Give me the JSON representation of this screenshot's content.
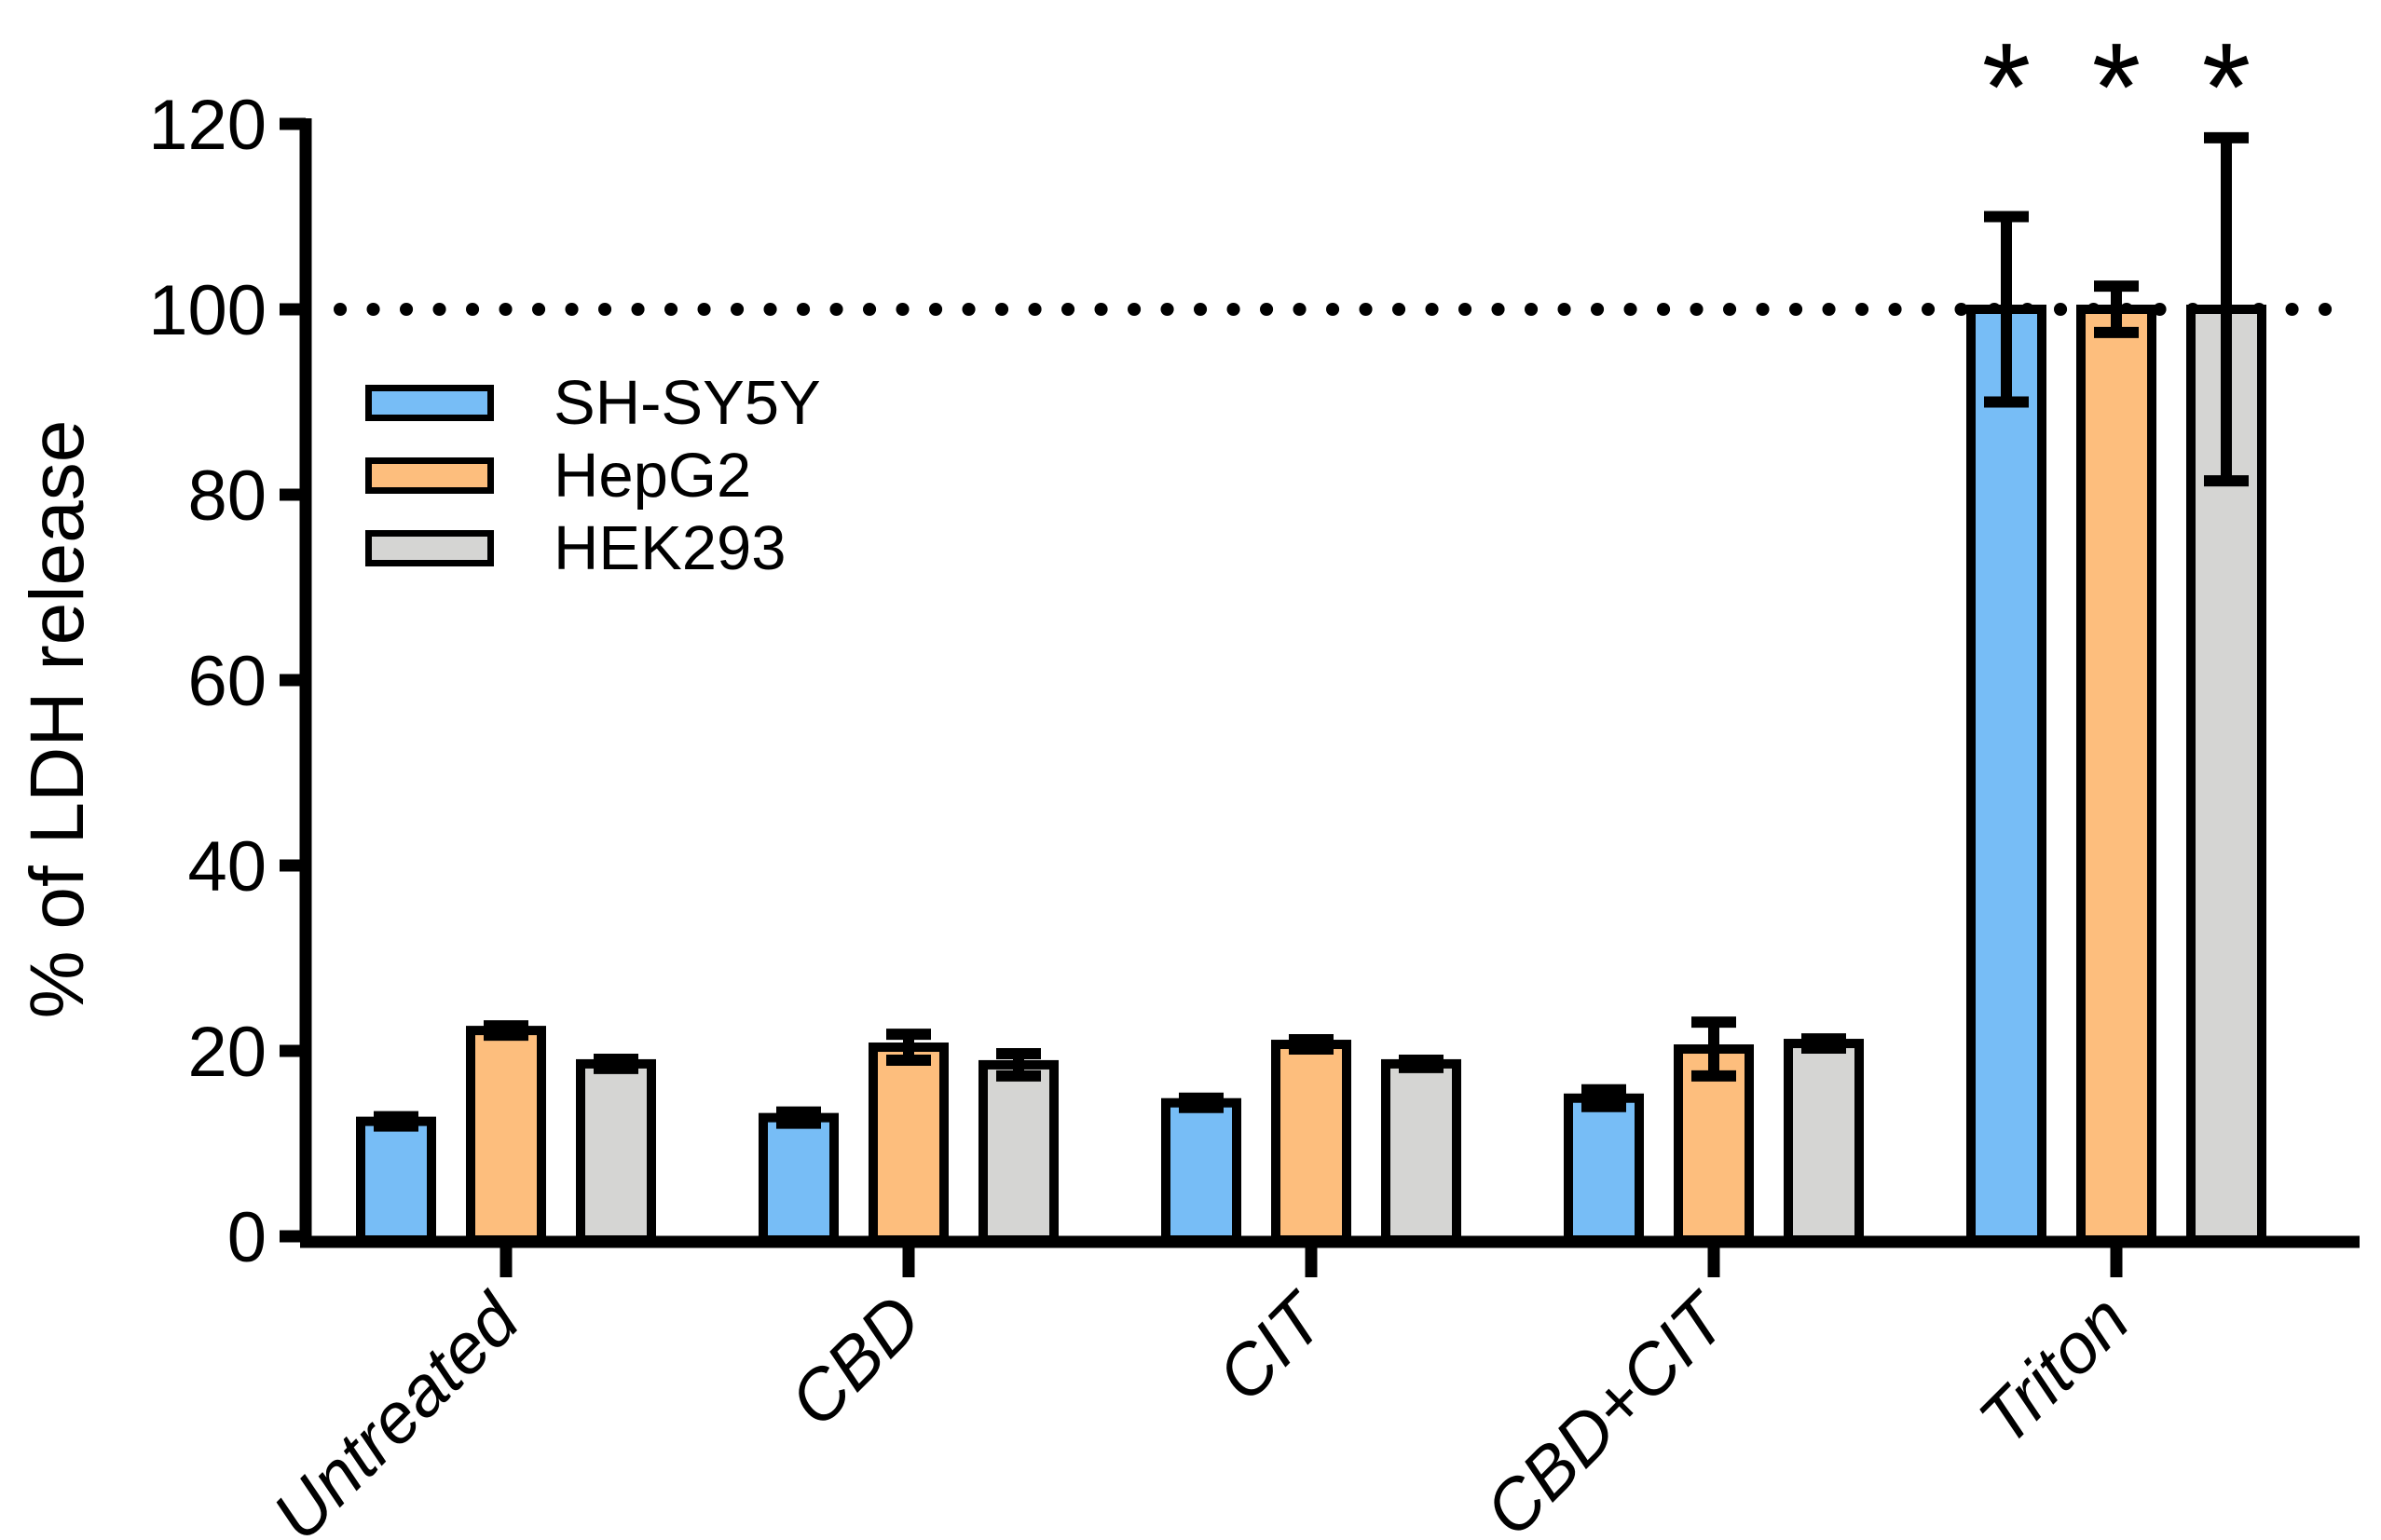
{
  "chart_data": {
    "type": "bar",
    "title": "",
    "xlabel": "",
    "ylabel": "% of LDH release",
    "ylim": [
      0,
      120
    ],
    "yticks": [
      0,
      20,
      40,
      60,
      80,
      100,
      120
    ],
    "grid": false,
    "legend_position": "upper-left-inside",
    "reference_line": {
      "value": 100,
      "style": "dotted"
    },
    "categories": [
      "Untreated",
      "CBD",
      "CIT",
      "CBD+CIT",
      "Triton"
    ],
    "series": [
      {
        "name": "SH-SY5Y",
        "color": "#77BDF6",
        "values": [
          12.4,
          12.8,
          14.4,
          14.9,
          100
        ],
        "errors": [
          0.5,
          0.6,
          0.5,
          0.9,
          10
        ]
      },
      {
        "name": "HepG2",
        "color": "#FDBE7D",
        "values": [
          22.2,
          20.4,
          20.7,
          20.2,
          100
        ],
        "errors": [
          0.5,
          1.4,
          0.5,
          2.9,
          2.5
        ]
      },
      {
        "name": "HEK293",
        "color": "#D5D5D3",
        "values": [
          18.6,
          18.5,
          18.6,
          20.8,
          100
        ],
        "errors": [
          0.5,
          1.2,
          0.4,
          0.5,
          18.5
        ]
      }
    ],
    "significance": {
      "marker": "*",
      "category": "Triton",
      "applies_to": [
        "SH-SY5Y",
        "HepG2",
        "HEK293"
      ]
    }
  },
  "colors": {
    "axis": "#000000",
    "background": "#FFFFFF"
  }
}
